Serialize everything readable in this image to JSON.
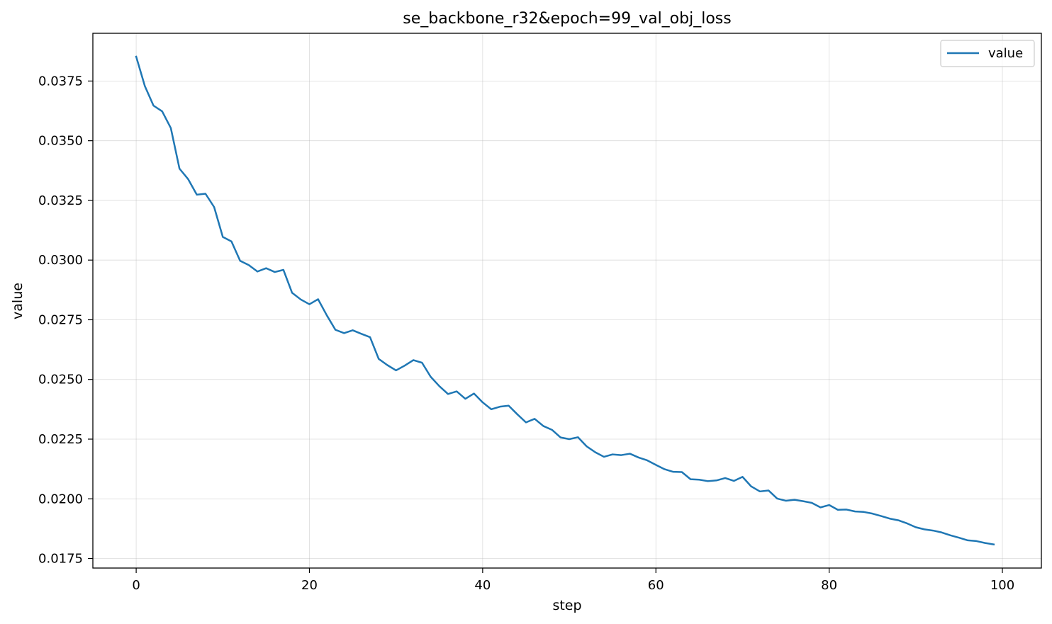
{
  "chart_data": {
    "type": "line",
    "title": "se_backbone_r32&epoch=99_val_obj_loss",
    "xlabel": "step",
    "ylabel": "value",
    "xlim": [
      -5,
      104.5
    ],
    "ylim": [
      0.0171,
      0.0395
    ],
    "xticks": [
      0,
      20,
      40,
      60,
      80,
      100
    ],
    "yticks": [
      0.0175,
      0.02,
      0.0225,
      0.025,
      0.0275,
      0.03,
      0.0325,
      0.035,
      0.0375
    ],
    "ytick_labels": [
      "0.0175",
      "0.0200",
      "0.0225",
      "0.0250",
      "0.0275",
      "0.0300",
      "0.0325",
      "0.0350",
      "0.0375"
    ],
    "grid": true,
    "legend_position": "top-right",
    "series": [
      {
        "name": "value",
        "color": "#1f77b4",
        "x": [
          0,
          1,
          2,
          3,
          4,
          5,
          6,
          7,
          8,
          9,
          10,
          11,
          12,
          13,
          14,
          15,
          16,
          17,
          18,
          19,
          20,
          21,
          22,
          23,
          24,
          25,
          26,
          27,
          28,
          29,
          30,
          31,
          32,
          33,
          34,
          35,
          36,
          37,
          38,
          39,
          40,
          41,
          42,
          43,
          44,
          45,
          46,
          47,
          48,
          49,
          50,
          51,
          52,
          53,
          54,
          55,
          56,
          57,
          58,
          59,
          60,
          61,
          62,
          63,
          64,
          65,
          66,
          67,
          68,
          69,
          70,
          71,
          72,
          73,
          74,
          75,
          76,
          77,
          78,
          79,
          80,
          81,
          82,
          83,
          84,
          85,
          86,
          87,
          88,
          89,
          90,
          91,
          92,
          93,
          94,
          95,
          96,
          97,
          98,
          99
        ],
        "values": [
          0.03852,
          0.03729,
          0.03647,
          0.03623,
          0.03553,
          0.03383,
          0.03339,
          0.03274,
          0.03278,
          0.03222,
          0.03097,
          0.03078,
          0.02997,
          0.02979,
          0.02952,
          0.02966,
          0.0295,
          0.02959,
          0.02863,
          0.02835,
          0.02815,
          0.02836,
          0.02769,
          0.02708,
          0.02694,
          0.02706,
          0.02691,
          0.02677,
          0.02586,
          0.0256,
          0.02538,
          0.02558,
          0.02581,
          0.0257,
          0.02511,
          0.02472,
          0.02439,
          0.0245,
          0.02419,
          0.02441,
          0.02404,
          0.02375,
          0.02386,
          0.0239,
          0.02354,
          0.0232,
          0.02335,
          0.02305,
          0.02289,
          0.02257,
          0.0225,
          0.02258,
          0.0222,
          0.02195,
          0.02176,
          0.02186,
          0.02183,
          0.02189,
          0.02173,
          0.02161,
          0.02142,
          0.02124,
          0.02113,
          0.02112,
          0.02082,
          0.0208,
          0.02074,
          0.02077,
          0.02087,
          0.02075,
          0.02092,
          0.02052,
          0.02031,
          0.02035,
          0.02001,
          0.01992,
          0.01996,
          0.0199,
          0.01983,
          0.01964,
          0.01974,
          0.01954,
          0.01955,
          0.01947,
          0.01945,
          0.01938,
          0.01928,
          0.01917,
          0.0191,
          0.01897,
          0.01881,
          0.01872,
          0.01867,
          0.01859,
          0.01847,
          0.01837,
          0.01826,
          0.01823,
          0.01815,
          0.01809
        ]
      }
    ]
  }
}
